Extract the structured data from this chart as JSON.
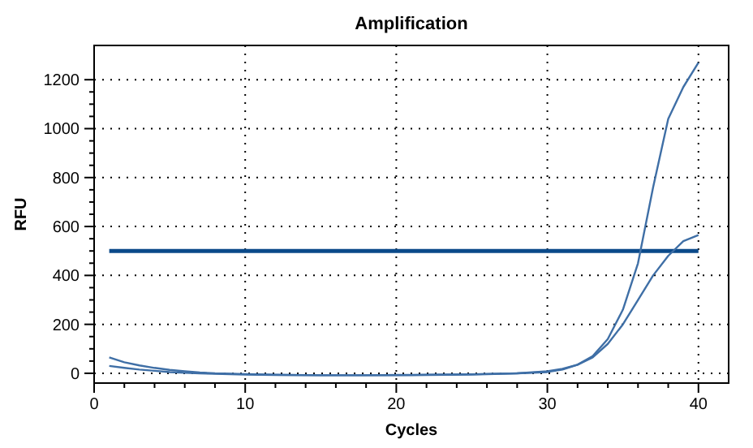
{
  "chart_data": {
    "type": "line",
    "title": "Amplification",
    "xlabel": "Cycles",
    "ylabel": "RFU",
    "x": [
      1,
      2,
      3,
      4,
      5,
      6,
      7,
      8,
      10,
      12,
      15,
      18,
      20,
      22,
      25,
      28,
      30,
      31,
      32,
      33,
      34,
      35,
      36,
      37,
      38,
      39,
      40
    ],
    "series": [
      {
        "color": "#3f6fa6",
        "values": [
          30,
          22,
          15,
          10,
          5,
          2,
          0,
          -2,
          -5,
          -7,
          -8,
          -8,
          -8,
          -7,
          -5,
          0,
          5,
          15,
          35,
          70,
          140,
          260,
          450,
          760,
          1040,
          1170,
          1270
        ]
      },
      {
        "color": "#3f6fa6",
        "values": [
          65,
          45,
          32,
          22,
          14,
          8,
          3,
          0,
          -3,
          -6,
          -8,
          -8,
          -7,
          -6,
          -4,
          0,
          8,
          18,
          35,
          65,
          120,
          200,
          300,
          400,
          480,
          540,
          565
        ]
      }
    ],
    "xlim": [
      0,
      42
    ],
    "xticks": [
      0,
      10,
      20,
      30,
      40
    ],
    "ylim": [
      -40,
      1340
    ],
    "yticks": [
      0,
      200,
      400,
      600,
      800,
      1000,
      1200
    ],
    "grid": true,
    "line_style": "solid",
    "marker": "none",
    "ref_lines": [
      {
        "axis": "y",
        "value": 500,
        "color": "#0b4a8a"
      }
    ]
  }
}
